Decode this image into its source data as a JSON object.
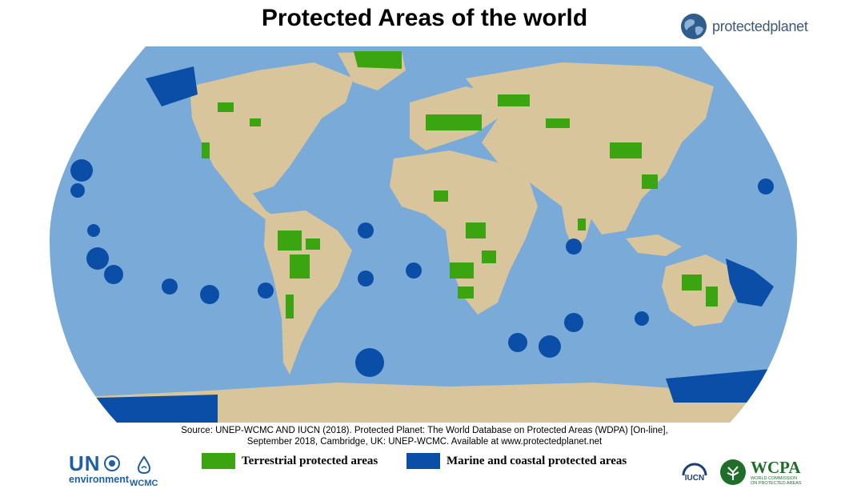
{
  "title": "Protected Areas of the world",
  "brand": {
    "protectedplanet": "protectedplanet"
  },
  "source": {
    "line1": "Source: UNEP-WCMC AND IUCN (2018). Protected Planet: The World Database on Protected Areas (WDPA) [On-line],",
    "line2": "September 2018, Cambridge, UK: UNEP-WCMC. Available at www.protectedplanet.net"
  },
  "legend": {
    "terrestrial": {
      "label": "Terrestrial protected areas",
      "color": "#3aa510"
    },
    "marine": {
      "label": "Marine and coastal protected areas",
      "color": "#0b4ea7"
    }
  },
  "colors": {
    "ocean": "#7aaad8",
    "land": "#d9c59b",
    "terrestrial": "#3aa510",
    "marine": "#0b4ea7"
  },
  "logos": {
    "un": "UN",
    "environment": "environment",
    "wcmc": "WCMC",
    "iucn": "IUCN",
    "wcpa": "WCPA",
    "wcpa_line1": "WORLD COMMISSION",
    "wcpa_line2": "ON PROTECTED AREAS"
  }
}
